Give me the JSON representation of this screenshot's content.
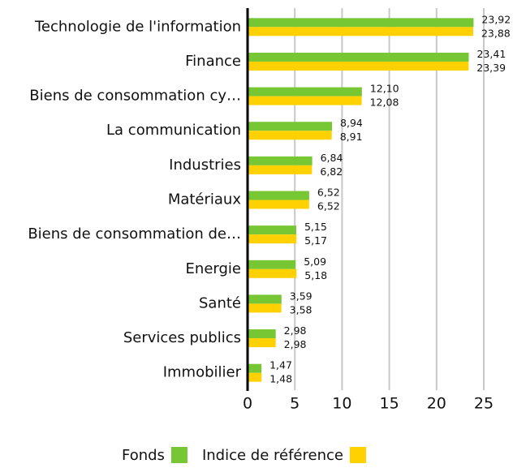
{
  "chart_data": {
    "type": "bar",
    "orientation": "horizontal",
    "categories": [
      "Technologie de l'information",
      "Finance",
      "Biens de consommation cy…",
      "La communication",
      "Industries",
      "Matériaux",
      "Biens de consommation de…",
      "Energie",
      "Santé",
      "Services publics",
      "Immobilier"
    ],
    "series": [
      {
        "name": "Fonds",
        "color": "#76c733",
        "values": [
          23.92,
          23.41,
          12.1,
          8.94,
          6.84,
          6.52,
          5.15,
          5.09,
          3.59,
          2.98,
          1.47
        ],
        "value_labels": [
          "23,92",
          "23,41",
          "12,10",
          "8,94",
          "6,84",
          "6,52",
          "5,15",
          "5,09",
          "3,59",
          "2,98",
          "1,47"
        ]
      },
      {
        "name": "Indice de référence",
        "color": "#ffd100",
        "values": [
          23.88,
          23.39,
          12.08,
          8.91,
          6.82,
          6.52,
          5.17,
          5.18,
          3.58,
          2.98,
          1.48
        ],
        "value_labels": [
          "23,88",
          "23,39",
          "12,08",
          "8,91",
          "6,82",
          "6,52",
          "5,17",
          "5,18",
          "3,58",
          "2,98",
          "1,48"
        ]
      }
    ],
    "xlim": [
      0,
      25
    ],
    "xticks": [
      0,
      5,
      10,
      15,
      20,
      25
    ],
    "grid": true,
    "legend": "bottom"
  }
}
